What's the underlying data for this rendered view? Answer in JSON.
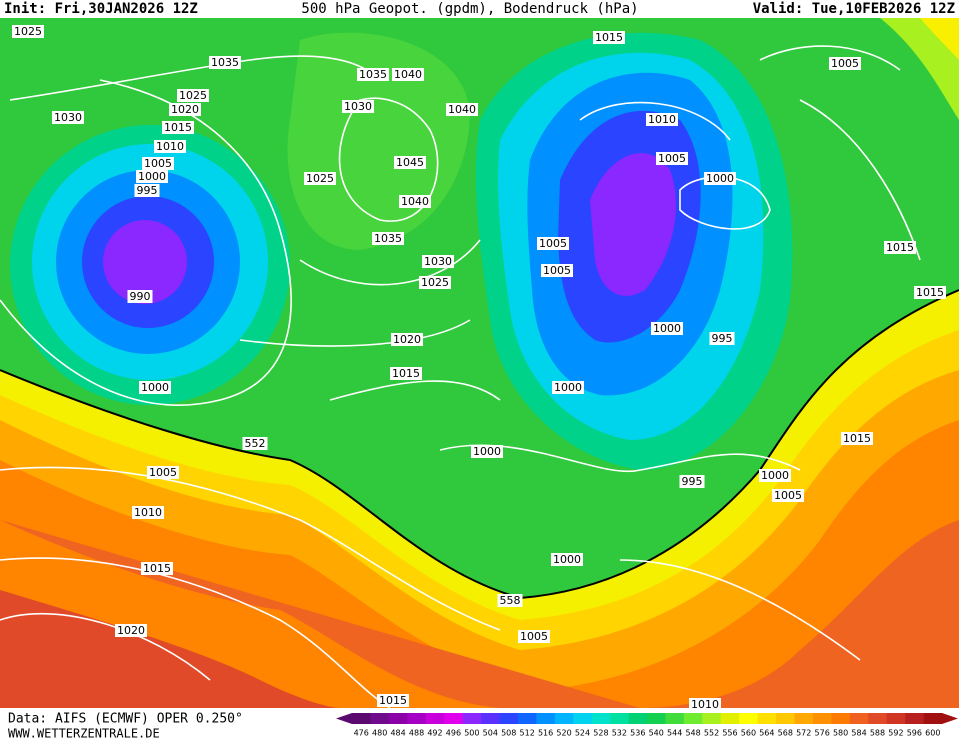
{
  "header": {
    "init": "Init: Fri,30JAN2026 12Z",
    "title": "500 hPa Geopot. (gpdm), Bodendruck (hPa)",
    "valid": "Valid: Tue,10FEB2026 12Z"
  },
  "footer": {
    "source": "Data: AIFS (ECMWF) OPER 0.250°",
    "site": "WWW.WETTERZENTRALE.DE"
  },
  "isobar_labels": [
    1025,
    1035,
    1025,
    1030,
    1020,
    1015,
    1010,
    1005,
    1000,
    995,
    990,
    1000,
    1035,
    1040,
    1030,
    1040,
    1045,
    1025,
    1040,
    1035,
    1030,
    1025,
    1020,
    1015,
    1015,
    1010,
    1005,
    1000,
    1005,
    1005,
    1000,
    995,
    1000,
    1000,
    995,
    1000,
    1005,
    1005,
    1015,
    1015,
    1015,
    1005,
    1010,
    1015,
    1020,
    1000,
    1005,
    1015,
    1010
  ],
  "geopotential_labels": [
    552,
    558
  ],
  "legend": {
    "levels": [
      476,
      480,
      484,
      488,
      492,
      496,
      500,
      504,
      508,
      512,
      516,
      520,
      524,
      528,
      532,
      536,
      540,
      544,
      548,
      552,
      556,
      560,
      564,
      568,
      572,
      576,
      580,
      584,
      588,
      592,
      596,
      600
    ],
    "colors": [
      "#5a0a6e",
      "#700a8c",
      "#8c00a8",
      "#a600c4",
      "#c800dc",
      "#e000ec",
      "#8a28ff",
      "#5a30ff",
      "#2a44ff",
      "#1064ff",
      "#0090ff",
      "#00b4ff",
      "#00d2f0",
      "#00e2cc",
      "#00e0a0",
      "#00d274",
      "#14d050",
      "#40dc3c",
      "#70ec30",
      "#a8f020",
      "#e0f000",
      "#ffff00",
      "#ffe000",
      "#ffc800",
      "#ffa800",
      "#ff9000",
      "#ff7a00",
      "#f06020",
      "#e04a28",
      "#d03422",
      "#b82020",
      "#a01010"
    ]
  }
}
